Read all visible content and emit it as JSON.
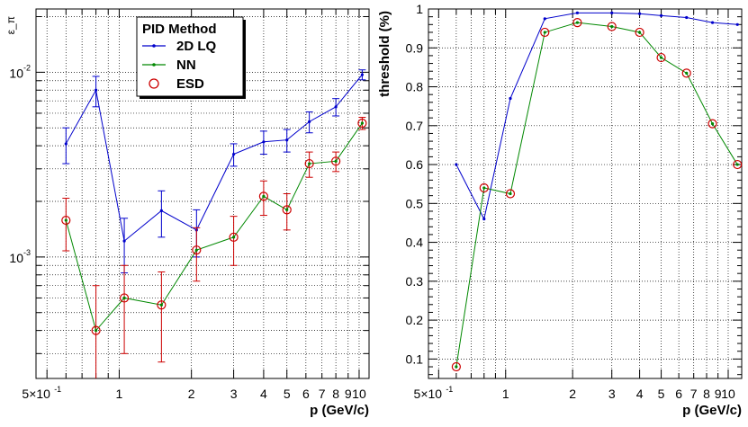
{
  "chart_data": [
    {
      "type": "line",
      "ylabel": "ε_π",
      "xlabel": "p (GeV/c)",
      "xscale": "log",
      "yscale": "log",
      "xlim": [
        0.45,
        11
      ],
      "ylim": [
        0.00022,
        0.022
      ],
      "grid": true,
      "x_tick_labels": [
        {
          "v": 0.5,
          "t": "5×10"
        },
        {
          "v": 1,
          "t": "1"
        },
        {
          "v": 2,
          "t": "2"
        },
        {
          "v": 3,
          "t": "3"
        },
        {
          "v": 4,
          "t": "4"
        },
        {
          "v": 5,
          "t": "5"
        },
        {
          "v": 6,
          "t": "6"
        },
        {
          "v": 7,
          "t": "7"
        },
        {
          "v": 8,
          "t": "8"
        },
        {
          "v": 9,
          "t": "9"
        },
        {
          "v": 10,
          "t": "10"
        }
      ],
      "y_tick_labels": [
        {
          "v": 0.001,
          "t": "10"
        },
        {
          "v": 0.01,
          "t": "10"
        }
      ],
      "legend": {
        "title": "PID Method",
        "placement": "top-center",
        "entries": [
          "2D LQ",
          "NN",
          "ESD"
        ]
      },
      "x": [
        0.6,
        0.8,
        1.05,
        1.5,
        2.1,
        3.0,
        4.0,
        5.0,
        6.2,
        8.0,
        10.3
      ],
      "series": [
        {
          "name": "2D LQ",
          "color": "#0000cc",
          "err_color": "#0000cc",
          "marker": "dot",
          "values": [
            0.0041,
            0.008,
            0.00122,
            0.00178,
            0.0014,
            0.0036,
            0.0042,
            0.0043,
            0.0054,
            0.0065,
            0.0097
          ],
          "err": [
            0.0009,
            0.0015,
            0.0004,
            0.0005,
            0.0004,
            0.0005,
            0.0006,
            0.0006,
            0.0007,
            0.0007,
            0.0006
          ]
        },
        {
          "name": "NN",
          "color": "#008800",
          "err_color": "#cc0000",
          "marker": "dot",
          "values": [
            0.00158,
            0.0004,
            0.0006,
            0.00055,
            0.00109,
            0.00128,
            0.00213,
            0.0018,
            0.0032,
            0.0033,
            0.0053
          ],
          "err": [
            0.0005,
            0.0003,
            0.0003,
            0.00028,
            0.00035,
            0.00038,
            0.00045,
            0.0004,
            0.0005,
            0.0004,
            0.0004
          ]
        },
        {
          "name": "ESD",
          "color": "#cc0000",
          "err_color": "#cc0000",
          "marker": "circle",
          "values": [
            0.00158,
            0.0004,
            0.0006,
            0.00055,
            0.00109,
            0.00128,
            0.00213,
            0.0018,
            0.0032,
            0.0033,
            0.0053
          ],
          "err": [
            0,
            0,
            0,
            0,
            0,
            0,
            0,
            0,
            0,
            0,
            0
          ]
        }
      ]
    },
    {
      "type": "line",
      "ylabel": "threshold (%)",
      "xlabel": "p (GeV/c)",
      "xscale": "log",
      "yscale": "linear",
      "xlim": [
        0.45,
        11.5
      ],
      "ylim": [
        0.05,
        1.0
      ],
      "grid": true,
      "x_tick_labels": [
        {
          "v": 0.5,
          "t": "5×10"
        },
        {
          "v": 1,
          "t": "1"
        },
        {
          "v": 2,
          "t": "2"
        },
        {
          "v": 3,
          "t": "3"
        },
        {
          "v": 4,
          "t": "4"
        },
        {
          "v": 5,
          "t": "5"
        },
        {
          "v": 6,
          "t": "6"
        },
        {
          "v": 7,
          "t": "7"
        },
        {
          "v": 8,
          "t": "8"
        },
        {
          "v": 9,
          "t": "9"
        },
        {
          "v": 10,
          "t": "10"
        }
      ],
      "y_tick_labels": [
        {
          "v": 0.1,
          "t": "0.1"
        },
        {
          "v": 0.2,
          "t": "0.2"
        },
        {
          "v": 0.3,
          "t": "0.3"
        },
        {
          "v": 0.4,
          "t": "0.4"
        },
        {
          "v": 0.5,
          "t": "0.5"
        },
        {
          "v": 0.6,
          "t": "0.6"
        },
        {
          "v": 0.7,
          "t": "0.7"
        },
        {
          "v": 0.8,
          "t": "0.8"
        },
        {
          "v": 0.9,
          "t": "0.9"
        },
        {
          "v": 1.0,
          "t": "1"
        }
      ],
      "x": [
        0.6,
        0.8,
        1.05,
        1.5,
        2.1,
        3.0,
        4.0,
        5.0,
        6.5,
        8.5,
        11.0
      ],
      "series": [
        {
          "name": "2D LQ",
          "color": "#0000cc",
          "marker": "dot",
          "values": [
            0.6,
            0.46,
            0.77,
            0.975,
            0.99,
            0.99,
            0.988,
            0.983,
            0.978,
            0.965,
            0.96
          ]
        },
        {
          "name": "NN",
          "color": "#008800",
          "marker": "dot",
          "values": [
            0.08,
            0.54,
            0.525,
            0.94,
            0.965,
            0.955,
            0.94,
            0.875,
            0.835,
            0.705,
            0.6
          ]
        },
        {
          "name": "ESD",
          "color": "#cc0000",
          "marker": "circle",
          "values": [
            0.08,
            0.54,
            0.525,
            0.94,
            0.965,
            0.955,
            0.94,
            0.875,
            0.835,
            0.705,
            0.6
          ]
        }
      ]
    }
  ]
}
